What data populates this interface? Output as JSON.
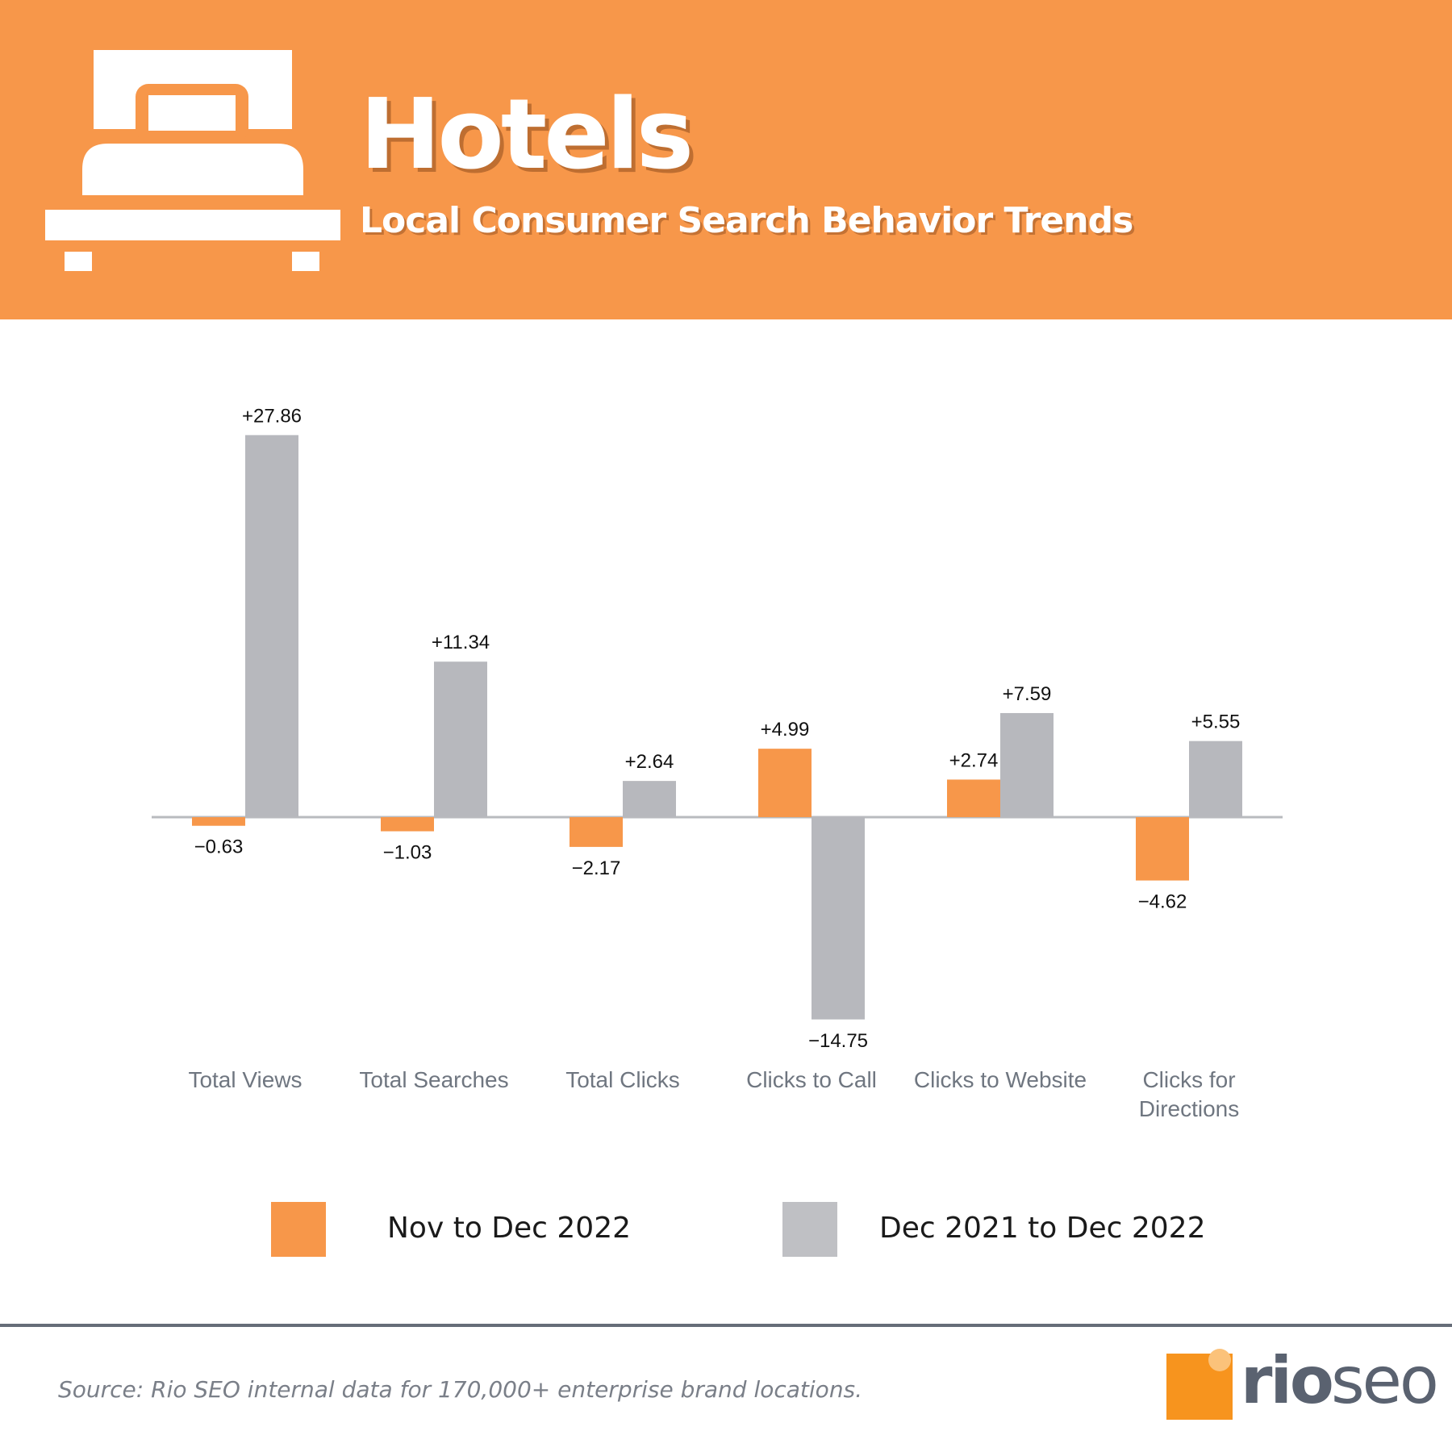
{
  "header": {
    "title": "Hotels",
    "subtitle": "Local Consumer Search Behavior Trends",
    "icon": "bed-icon",
    "background_color": "#F7974A"
  },
  "chart_data": {
    "type": "bar",
    "categories": [
      "Total Views",
      "Total Searches",
      "Total Clicks",
      "Clicks to Call",
      "Clicks to Website",
      "Clicks for Directions"
    ],
    "category_lines": [
      [
        "Total Views"
      ],
      [
        "Total Searches"
      ],
      [
        "Total Clicks"
      ],
      [
        "Clicks to Call"
      ],
      [
        "Clicks to Website"
      ],
      [
        "Clicks for",
        "Directions"
      ]
    ],
    "series": [
      {
        "name": "Nov to Dec 2022",
        "color": "#F7974A",
        "values": [
          -0.63,
          -1.03,
          -2.17,
          4.99,
          2.74,
          -4.62
        ],
        "labels": [
          "−0.63",
          "−1.03",
          "−2.17",
          "+4.99",
          "+2.74",
          "−4.62"
        ]
      },
      {
        "name": "Dec 2021 to Dec 2022",
        "color": "#B7B8BD",
        "values": [
          27.86,
          11.34,
          2.64,
          -14.75,
          7.59,
          5.55
        ],
        "labels": [
          "+27.86",
          "+11.34",
          "+2.64",
          "−14.75",
          "+7.59",
          "+5.55"
        ]
      }
    ],
    "xlabel": "",
    "ylabel": "",
    "grid": false,
    "legend": "bottom"
  },
  "legend": {
    "items": [
      "Nov to Dec 2022",
      "Dec 2021 to Dec 2022"
    ]
  },
  "footer": {
    "source": "Source: Rio SEO internal data for 170,000+ enterprise brand locations.",
    "logo_rio": "rio",
    "logo_seo": "seo",
    "logo_color": "#F7941E"
  }
}
